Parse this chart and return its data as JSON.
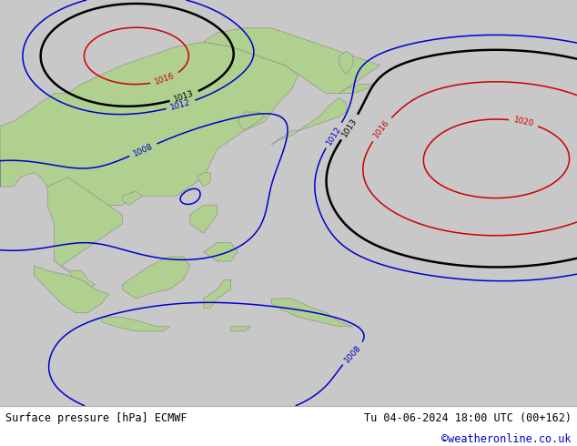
{
  "bottom_left_text": "Surface pressure [hPa] ECMWF",
  "bottom_right_text": "Tu 04-06-2024 18:00 UTC (00+162)",
  "bottom_right_text2": "©weatheronline.co.uk",
  "ocean_color": "#c8c8c8",
  "land_color": "#b0d090",
  "land_edge_color": "#888888",
  "fig_width": 6.34,
  "fig_height": 4.9,
  "dpi": 100,
  "bottom_text_color": "#000000",
  "copyright_color": "#0000cc",
  "font_size_bottom": 8.5,
  "font_size_copyright": 8.5,
  "lon_min": 90,
  "lon_max": 175,
  "lat_min": -25,
  "lat_max": 62
}
